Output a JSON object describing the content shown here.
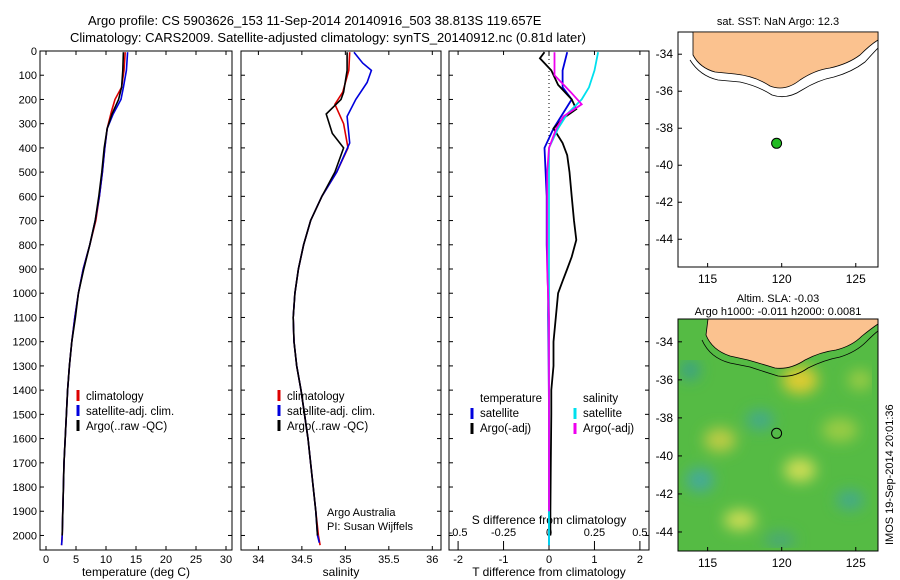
{
  "header": {
    "line1": "Argo profile: CS 5903626_153 11-Sep-2014 20140916_503 38.813S 119.657E",
    "line2": "Climatology: CARS2009. Satellite-adjusted climatology: synTS_20140912.nc (0.81d later)"
  },
  "colors": {
    "climatology": "#dd0000",
    "satellite": "#0000dd",
    "argo": "#000000",
    "sat_salinity": "#00e0ee",
    "argo_salinity": "#ee00ee",
    "land": "#fbc28f",
    "float": "#22bb22"
  },
  "chart_data": [
    {
      "type": "line",
      "xlabel": "temperature (deg C)",
      "xlim": [
        -1,
        31
      ],
      "xticks": [
        "0",
        "5",
        "10",
        "15",
        "20",
        "25",
        "30"
      ],
      "xtick_values": [
        0,
        5,
        10,
        15,
        20,
        25,
        30
      ],
      "ylim": [
        0,
        2060
      ],
      "yticks": [
        "0",
        "100",
        "200",
        "300",
        "400",
        "500",
        "600",
        "700",
        "800",
        "900",
        "1000",
        "1100",
        "1200",
        "1300",
        "1400",
        "1500",
        "1600",
        "1700",
        "1800",
        "1900",
        "2000"
      ],
      "ytick_values": [
        0,
        100,
        200,
        300,
        400,
        500,
        600,
        700,
        800,
        900,
        1000,
        1100,
        1200,
        1300,
        1400,
        1500,
        1600,
        1700,
        1800,
        1900,
        2000
      ],
      "legend": {
        "placement": "lower-right",
        "entries": [
          "climatology",
          "satellite-adj. clim.",
          "Argo(..raw -QC)"
        ]
      },
      "series": [
        {
          "name": "climatology",
          "points": [
            [
              13.2,
              5
            ],
            [
              13.0,
              80
            ],
            [
              12.6,
              150
            ],
            [
              11.5,
              200
            ],
            [
              10.9,
              250
            ],
            [
              10.2,
              320
            ],
            [
              9.8,
              400
            ],
            [
              9.4,
              500
            ],
            [
              8.9,
              600
            ],
            [
              8.3,
              700
            ],
            [
              7.3,
              800
            ],
            [
              6.2,
              900
            ],
            [
              5.4,
              1000
            ],
            [
              4.8,
              1100
            ],
            [
              4.3,
              1200
            ],
            [
              3.9,
              1300
            ],
            [
              3.6,
              1400
            ],
            [
              3.4,
              1500
            ],
            [
              3.2,
              1600
            ],
            [
              3.0,
              1700
            ],
            [
              2.9,
              1800
            ],
            [
              2.8,
              1900
            ],
            [
              2.7,
              2000
            ],
            [
              2.6,
              2040
            ]
          ]
        },
        {
          "name": "satellite-adj. clim.",
          "points": [
            [
              13.6,
              5
            ],
            [
              13.4,
              80
            ],
            [
              12.9,
              150
            ],
            [
              12.5,
              200
            ],
            [
              11.2,
              260
            ],
            [
              10.2,
              320
            ],
            [
              9.8,
              400
            ],
            [
              9.4,
              500
            ],
            [
              8.9,
              600
            ],
            [
              8.2,
              700
            ],
            [
              7.3,
              800
            ],
            [
              6.2,
              900
            ],
            [
              5.4,
              1000
            ],
            [
              4.8,
              1100
            ],
            [
              4.3,
              1200
            ],
            [
              3.9,
              1300
            ],
            [
              3.6,
              1400
            ],
            [
              3.4,
              1500
            ],
            [
              3.2,
              1600
            ],
            [
              3.0,
              1700
            ],
            [
              2.9,
              1800
            ],
            [
              2.8,
              1900
            ],
            [
              2.7,
              2000
            ],
            [
              2.6,
              2040
            ]
          ]
        },
        {
          "name": "Argo(..raw -QC)",
          "points": [
            [
              12.9,
              5
            ],
            [
              12.8,
              80
            ],
            [
              12.6,
              150
            ],
            [
              12.1,
              200
            ],
            [
              11.0,
              260
            ],
            [
              10.2,
              320
            ],
            [
              9.7,
              400
            ],
            [
              9.3,
              500
            ],
            [
              8.8,
              600
            ],
            [
              8.2,
              700
            ],
            [
              7.3,
              800
            ],
            [
              6.3,
              900
            ],
            [
              5.4,
              1000
            ],
            [
              4.9,
              1100
            ],
            [
              4.3,
              1200
            ],
            [
              3.9,
              1300
            ],
            [
              3.6,
              1400
            ],
            [
              3.4,
              1500
            ],
            [
              3.2,
              1600
            ],
            [
              3.0,
              1700
            ],
            [
              2.9,
              1800
            ],
            [
              2.8,
              1900
            ],
            [
              2.7,
              2000
            ]
          ]
        }
      ]
    },
    {
      "type": "line",
      "xlabel": "salinity",
      "xlim": [
        33.8,
        36.1
      ],
      "xticks": [
        "34",
        "34.5",
        "35",
        "35.5",
        "36"
      ],
      "xtick_values": [
        34,
        34.5,
        35,
        35.5,
        36
      ],
      "ylim": [
        0,
        2060
      ],
      "legend": {
        "placement": "lower-right",
        "entries": [
          "climatology",
          "satellite-adj. clim.",
          "Argo(..raw -QC)"
        ]
      },
      "annotation": [
        "Argo Australia",
        "PI: Susan Wijffels"
      ],
      "series": [
        {
          "name": "climatology",
          "points": [
            [
              35.05,
              5
            ],
            [
              35.04,
              80
            ],
            [
              34.97,
              170
            ],
            [
              34.88,
              220
            ],
            [
              34.98,
              300
            ],
            [
              35.03,
              400
            ],
            [
              34.9,
              500
            ],
            [
              34.73,
              600
            ],
            [
              34.6,
              700
            ],
            [
              34.52,
              800
            ],
            [
              34.46,
              900
            ],
            [
              34.42,
              1000
            ],
            [
              34.4,
              1100
            ],
            [
              34.41,
              1200
            ],
            [
              34.44,
              1300
            ],
            [
              34.49,
              1400
            ],
            [
              34.53,
              1500
            ],
            [
              34.57,
              1600
            ],
            [
              34.6,
              1700
            ],
            [
              34.63,
              1800
            ],
            [
              34.66,
              1900
            ],
            [
              34.69,
              2000
            ],
            [
              34.71,
              2040
            ]
          ]
        },
        {
          "name": "satellite-adj. clim.",
          "points": [
            [
              35.1,
              5
            ],
            [
              35.2,
              50
            ],
            [
              35.3,
              80
            ],
            [
              35.25,
              130
            ],
            [
              35.12,
              200
            ],
            [
              35.02,
              270
            ],
            [
              35.05,
              380
            ],
            [
              34.9,
              500
            ],
            [
              34.73,
              600
            ],
            [
              34.6,
              700
            ],
            [
              34.52,
              800
            ],
            [
              34.46,
              900
            ],
            [
              34.42,
              1000
            ],
            [
              34.4,
              1100
            ],
            [
              34.41,
              1200
            ],
            [
              34.44,
              1300
            ],
            [
              34.49,
              1400
            ],
            [
              34.53,
              1500
            ],
            [
              34.57,
              1600
            ],
            [
              34.6,
              1700
            ],
            [
              34.63,
              1800
            ],
            [
              34.66,
              1900
            ],
            [
              34.68,
              2000
            ],
            [
              34.7,
              2030
            ]
          ]
        },
        {
          "name": "Argo(..raw -QC)",
          "points": [
            [
              35.02,
              5
            ],
            [
              35.02,
              80
            ],
            [
              34.98,
              170
            ],
            [
              34.95,
              200
            ],
            [
              34.78,
              260
            ],
            [
              34.85,
              340
            ],
            [
              34.98,
              400
            ],
            [
              34.88,
              500
            ],
            [
              34.73,
              600
            ],
            [
              34.6,
              700
            ],
            [
              34.52,
              800
            ],
            [
              34.46,
              900
            ],
            [
              34.42,
              1000
            ],
            [
              34.4,
              1100
            ],
            [
              34.41,
              1200
            ],
            [
              34.44,
              1300
            ],
            [
              34.49,
              1400
            ],
            [
              34.53,
              1500
            ],
            [
              34.57,
              1600
            ],
            [
              34.6,
              1700
            ],
            [
              34.63,
              1800
            ],
            [
              34.66,
              1900
            ],
            [
              34.68,
              2000
            ]
          ]
        }
      ]
    },
    {
      "type": "line",
      "xlabel": "T difference from climatology",
      "xlabel_top": "S difference from climatology",
      "xlim": [
        -2.2,
        2.2
      ],
      "xticks": [
        "-2",
        "-1",
        "0",
        "1",
        "2"
      ],
      "xtick_values": [
        -2,
        -1,
        0,
        1,
        2
      ],
      "xticks_top": [
        "-0.5",
        "-0.25",
        "0",
        "0.25",
        "0.5"
      ],
      "xtick_top_values": [
        -0.5,
        -0.25,
        0,
        0.25,
        0.5
      ],
      "ylim": [
        0,
        2060
      ],
      "legend": {
        "placement": "lower",
        "temperature_title": "temperature",
        "salinity_title": "salinity",
        "temperature_entries": [
          "satellite",
          "Argo(-adj)"
        ],
        "salinity_entries": [
          "satellite",
          "Argo(-adj)"
        ]
      },
      "series": [
        {
          "name": "satellite",
          "group": "temperature",
          "points": [
            [
              0.4,
              5
            ],
            [
              0.3,
              80
            ],
            [
              0.3,
              150
            ],
            [
              0.5,
              200
            ],
            [
              0.3,
              260
            ],
            [
              0.1,
              320
            ],
            [
              -0.1,
              400
            ],
            [
              -0.05,
              600
            ],
            [
              -0.05,
              800
            ],
            [
              -0.02,
              1000
            ],
            [
              -0.01,
              1200
            ],
            [
              0,
              1500
            ],
            [
              0,
              1800
            ],
            [
              0,
              2040
            ]
          ]
        },
        {
          "name": "Argo(-adj)",
          "group": "temperature",
          "points": [
            [
              -0.1,
              5
            ],
            [
              -0.2,
              30
            ],
            [
              0.05,
              80
            ],
            [
              0.2,
              140
            ],
            [
              0.5,
              200
            ],
            [
              0.6,
              240
            ],
            [
              0.3,
              280
            ],
            [
              0.1,
              320
            ],
            [
              0.3,
              380
            ],
            [
              0.4,
              430
            ],
            [
              0.45,
              500
            ],
            [
              0.5,
              600
            ],
            [
              0.55,
              700
            ],
            [
              0.6,
              780
            ],
            [
              0.5,
              850
            ],
            [
              0.4,
              900
            ],
            [
              0.3,
              950
            ],
            [
              0.2,
              1000
            ],
            [
              0.15,
              1100
            ],
            [
              0.1,
              1200
            ],
            [
              0.1,
              1300
            ],
            [
              0.05,
              1400
            ],
            [
              0.05,
              1500
            ],
            [
              0.04,
              1700
            ],
            [
              0.03,
              1900
            ],
            [
              0.03,
              2000
            ]
          ]
        },
        {
          "name": "satellite",
          "group": "salinity",
          "points": [
            [
              0.27,
              5
            ],
            [
              0.25,
              80
            ],
            [
              0.22,
              150
            ],
            [
              0.18,
              200
            ],
            [
              0.1,
              260
            ],
            [
              0.05,
              320
            ],
            [
              0,
              400
            ],
            [
              0,
              600
            ],
            [
              0,
              1000
            ],
            [
              0,
              1500
            ],
            [
              0,
              2000
            ],
            [
              0,
              2040
            ]
          ]
        },
        {
          "name": "Argo(-adj)",
          "group": "salinity",
          "points": [
            [
              0.03,
              5
            ],
            [
              0.03,
              100
            ],
            [
              0.12,
              170
            ],
            [
              0.18,
              220
            ],
            [
              0.08,
              270
            ],
            [
              0.04,
              320
            ],
            [
              0,
              400
            ],
            [
              -0.01,
              500
            ],
            [
              -0.01,
              700
            ],
            [
              -0.01,
              900
            ],
            [
              0,
              1100
            ],
            [
              0,
              1400
            ],
            [
              0,
              1700
            ],
            [
              0,
              1900
            ]
          ]
        }
      ]
    },
    {
      "type": "scatter",
      "title": "sat. SST: NaN Argo: 12.3",
      "xticks": [
        "115",
        "120",
        "125"
      ],
      "xtick_values": [
        115,
        120,
        125
      ],
      "xlim": [
        113,
        126.5
      ],
      "ylim": [
        -45.5,
        -32.8
      ],
      "yticks": [
        "-34",
        "-36",
        "-38",
        "-40",
        "-42",
        "-44"
      ],
      "ytick_values": [
        -34,
        -36,
        -38,
        -40,
        -42,
        -44
      ],
      "points": [
        {
          "lon": 119.657,
          "lat": -38.813
        }
      ]
    },
    {
      "type": "heatmap",
      "title": "Altim. SLA: -0.03",
      "subtitle": "Argo h1000: -0.011 h2000: 0.0081",
      "xticks": [
        "115",
        "120",
        "125"
      ],
      "xtick_values": [
        115,
        120,
        125
      ],
      "xlim": [
        113,
        126.5
      ],
      "ylim": [
        -45,
        -32.8
      ],
      "yticks": [
        "-34",
        "-36",
        "-38",
        "-40",
        "-42",
        "-44"
      ],
      "ytick_values": [
        -34,
        -36,
        -38,
        -40,
        -42,
        -44
      ],
      "points": [
        {
          "lon": 119.657,
          "lat": -38.813
        }
      ]
    }
  ],
  "side_label": "IMOS 19-Sep-2014 20:01:36"
}
